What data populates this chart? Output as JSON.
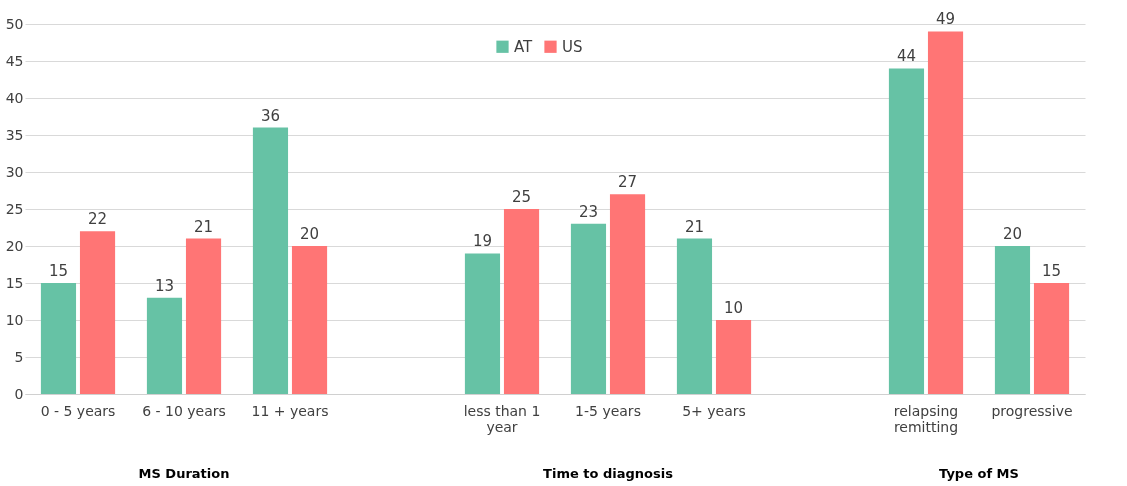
{
  "chart_data": {
    "type": "bar",
    "categories": [
      "0 - 5 years",
      "6 - 10 years",
      "11 + years",
      null,
      "less than 1 year",
      "1-5 years",
      "5+ years",
      null,
      "relapsing remitting",
      "progressive"
    ],
    "series": [
      {
        "name": "AT",
        "color": "#66c2a5",
        "values": [
          15,
          13,
          36,
          null,
          19,
          23,
          21,
          null,
          44,
          20
        ]
      },
      {
        "name": "US",
        "color": "#ff7575",
        "values": [
          22,
          21,
          20,
          null,
          25,
          27,
          10,
          null,
          49,
          15
        ]
      }
    ],
    "ylim": [
      0,
      50
    ],
    "yticks": [
      0,
      5,
      10,
      15,
      20,
      25,
      30,
      35,
      40,
      45,
      50
    ],
    "grid": "y",
    "legend": "top",
    "data_labels": true,
    "annotations": [
      "MS Duration",
      "Time to diagnosis",
      "Type of MS"
    ]
  }
}
